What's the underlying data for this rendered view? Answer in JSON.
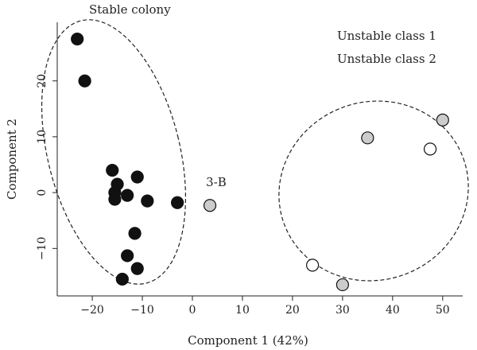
{
  "chart_data": {
    "type": "scatter",
    "xlabel": "Component 1 (42%)",
    "ylabel": "Component 2",
    "xlim": [
      -27,
      54
    ],
    "ylim": [
      -18.5,
      30.5
    ],
    "x_ticks": [
      -20,
      -10,
      0,
      10,
      20,
      30,
      40,
      50
    ],
    "y_ticks": [
      -10,
      0,
      10,
      20
    ],
    "grid": false,
    "legend": {
      "placement": "top-right",
      "entries": [
        "Unstable class 1",
        "Unstable class 2"
      ]
    },
    "series": [
      {
        "name": "Stable colony",
        "fill": "#111111",
        "points": [
          {
            "x": -23,
            "y": 27.5
          },
          {
            "x": -21.5,
            "y": 20
          },
          {
            "x": -16,
            "y": 4
          },
          {
            "x": -15,
            "y": 1.5
          },
          {
            "x": -15.5,
            "y": 0
          },
          {
            "x": -15.5,
            "y": -1.2
          },
          {
            "x": -13,
            "y": -0.5
          },
          {
            "x": -11,
            "y": 2.8
          },
          {
            "x": -9,
            "y": -1.5
          },
          {
            "x": -3,
            "y": -1.8
          },
          {
            "x": -11.5,
            "y": -7.3
          },
          {
            "x": -13,
            "y": -11.3
          },
          {
            "x": -11,
            "y": -13.6
          },
          {
            "x": -14,
            "y": -15.5
          }
        ]
      },
      {
        "name": "Unstable class 1",
        "fill": "#ffffff",
        "points": [
          {
            "x": 47.5,
            "y": 7.8
          },
          {
            "x": 24,
            "y": -13
          }
        ]
      },
      {
        "name": "Unstable class 2",
        "fill": "#cccccc",
        "points": [
          {
            "x": 3.5,
            "y": -2.3
          },
          {
            "x": 35,
            "y": 9.8
          },
          {
            "x": 50,
            "y": 13
          },
          {
            "x": 30,
            "y": -16.5
          }
        ]
      }
    ],
    "annotations": [
      {
        "text": "Stable colony",
        "x": -21,
        "y": 31.3
      },
      {
        "text": "3-B",
        "x": 3.5,
        "y": 0.8
      }
    ]
  }
}
